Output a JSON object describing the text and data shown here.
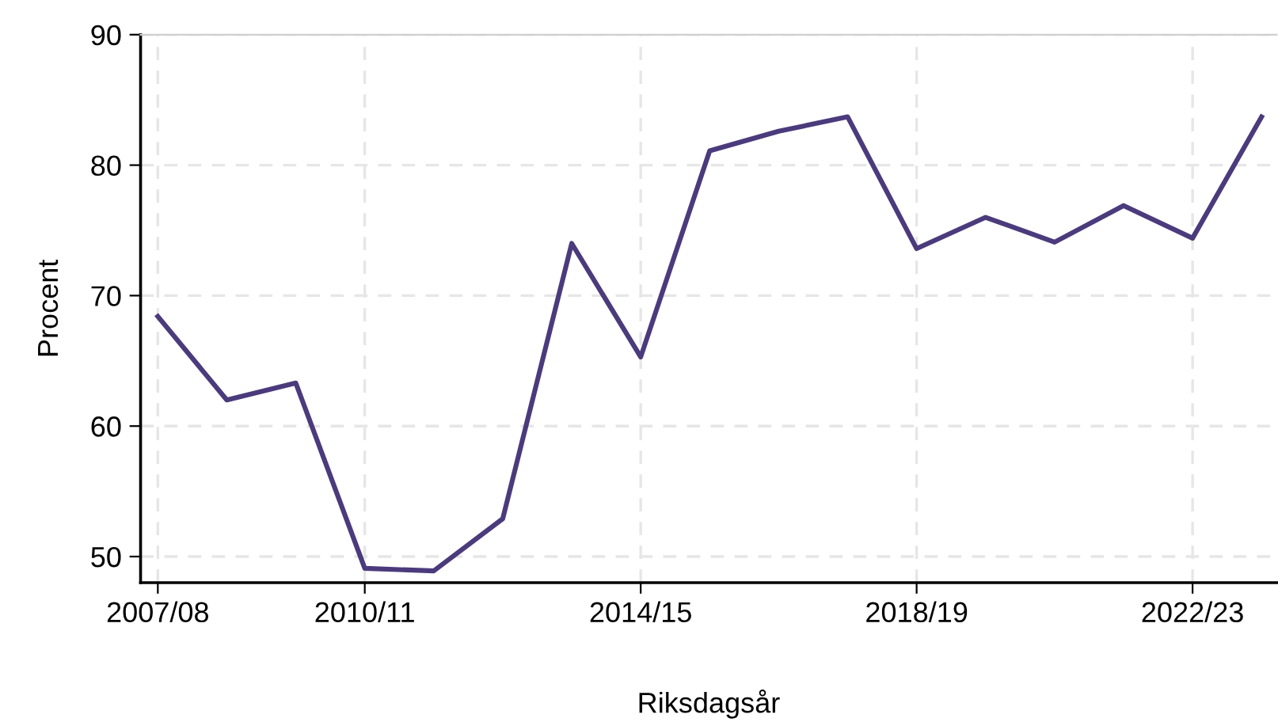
{
  "chart_data": {
    "type": "line",
    "xlabel": "Riksdagsår",
    "ylabel": "Procent",
    "categories": [
      "2007/08",
      null,
      null,
      "2010/11",
      null,
      null,
      null,
      "2014/15",
      null,
      null,
      null,
      "2018/19",
      null,
      null,
      null,
      "2022/23",
      null
    ],
    "series": [
      {
        "color": "#4b3b7c",
        "values": [
          68.4,
          62.0,
          63.3,
          49.1,
          48.9,
          52.9,
          74.0,
          65.3,
          81.1,
          82.6,
          83.7,
          73.6,
          76.0,
          74.1,
          76.9,
          74.4,
          83.7
        ]
      }
    ],
    "ylim": [
      48,
      90
    ],
    "yticks": [
      50,
      60,
      70,
      80,
      90
    ],
    "grid": true,
    "marker": "none",
    "line_style": "solid"
  }
}
